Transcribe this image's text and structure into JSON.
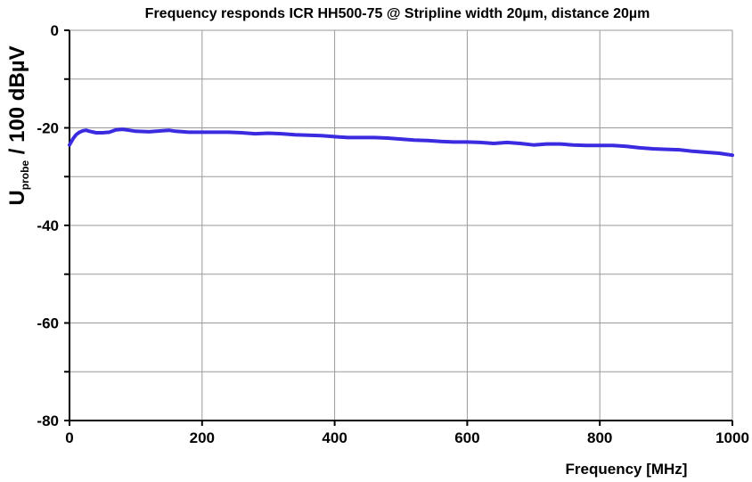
{
  "chart_data": {
    "type": "line",
    "title": "Frequency responds ICR HH500-75 @ Stripline width 20µm, distance 20µm",
    "xlabel": "Frequency [MHz]",
    "ylabel": {
      "main": "U",
      "subscript": "probe",
      "rest": " / 100 dBµV"
    },
    "xlim": [
      0,
      1000
    ],
    "ylim": [
      -80,
      0
    ],
    "xticks": [
      0,
      200,
      400,
      600,
      800,
      1000
    ],
    "xtick_labels": [
      "0",
      "200",
      "400",
      "600",
      "800",
      "1000"
    ],
    "yticks": [
      0,
      -20,
      -40,
      -60,
      -80
    ],
    "ytick_labels": [
      "0",
      "-20",
      "-40",
      "-60",
      "-80"
    ],
    "grid": true,
    "series": [
      {
        "color": "#3b2be0",
        "x": [
          0,
          5,
          10,
          15,
          20,
          25,
          30,
          40,
          50,
          60,
          70,
          80,
          90,
          100,
          120,
          140,
          150,
          160,
          180,
          200,
          220,
          240,
          260,
          280,
          300,
          320,
          340,
          360,
          380,
          400,
          420,
          440,
          460,
          480,
          500,
          520,
          540,
          560,
          580,
          600,
          620,
          640,
          660,
          680,
          700,
          720,
          740,
          760,
          780,
          800,
          820,
          840,
          860,
          880,
          900,
          920,
          940,
          960,
          980,
          1000
        ],
        "y": [
          -23.5,
          -22.3,
          -21.4,
          -20.9,
          -20.6,
          -20.5,
          -20.7,
          -21.0,
          -21.0,
          -20.9,
          -20.4,
          -20.3,
          -20.5,
          -20.7,
          -20.8,
          -20.6,
          -20.5,
          -20.7,
          -20.9,
          -20.9,
          -20.9,
          -20.9,
          -21.0,
          -21.2,
          -21.1,
          -21.2,
          -21.4,
          -21.5,
          -21.6,
          -21.8,
          -22.0,
          -22.0,
          -22.0,
          -22.1,
          -22.3,
          -22.5,
          -22.6,
          -22.8,
          -22.9,
          -22.9,
          -23.0,
          -23.2,
          -23.0,
          -23.2,
          -23.5,
          -23.3,
          -23.3,
          -23.5,
          -23.6,
          -23.6,
          -23.6,
          -23.8,
          -24.1,
          -24.3,
          -24.4,
          -24.5,
          -24.8,
          -25.0,
          -25.2,
          -25.6
        ]
      }
    ]
  }
}
